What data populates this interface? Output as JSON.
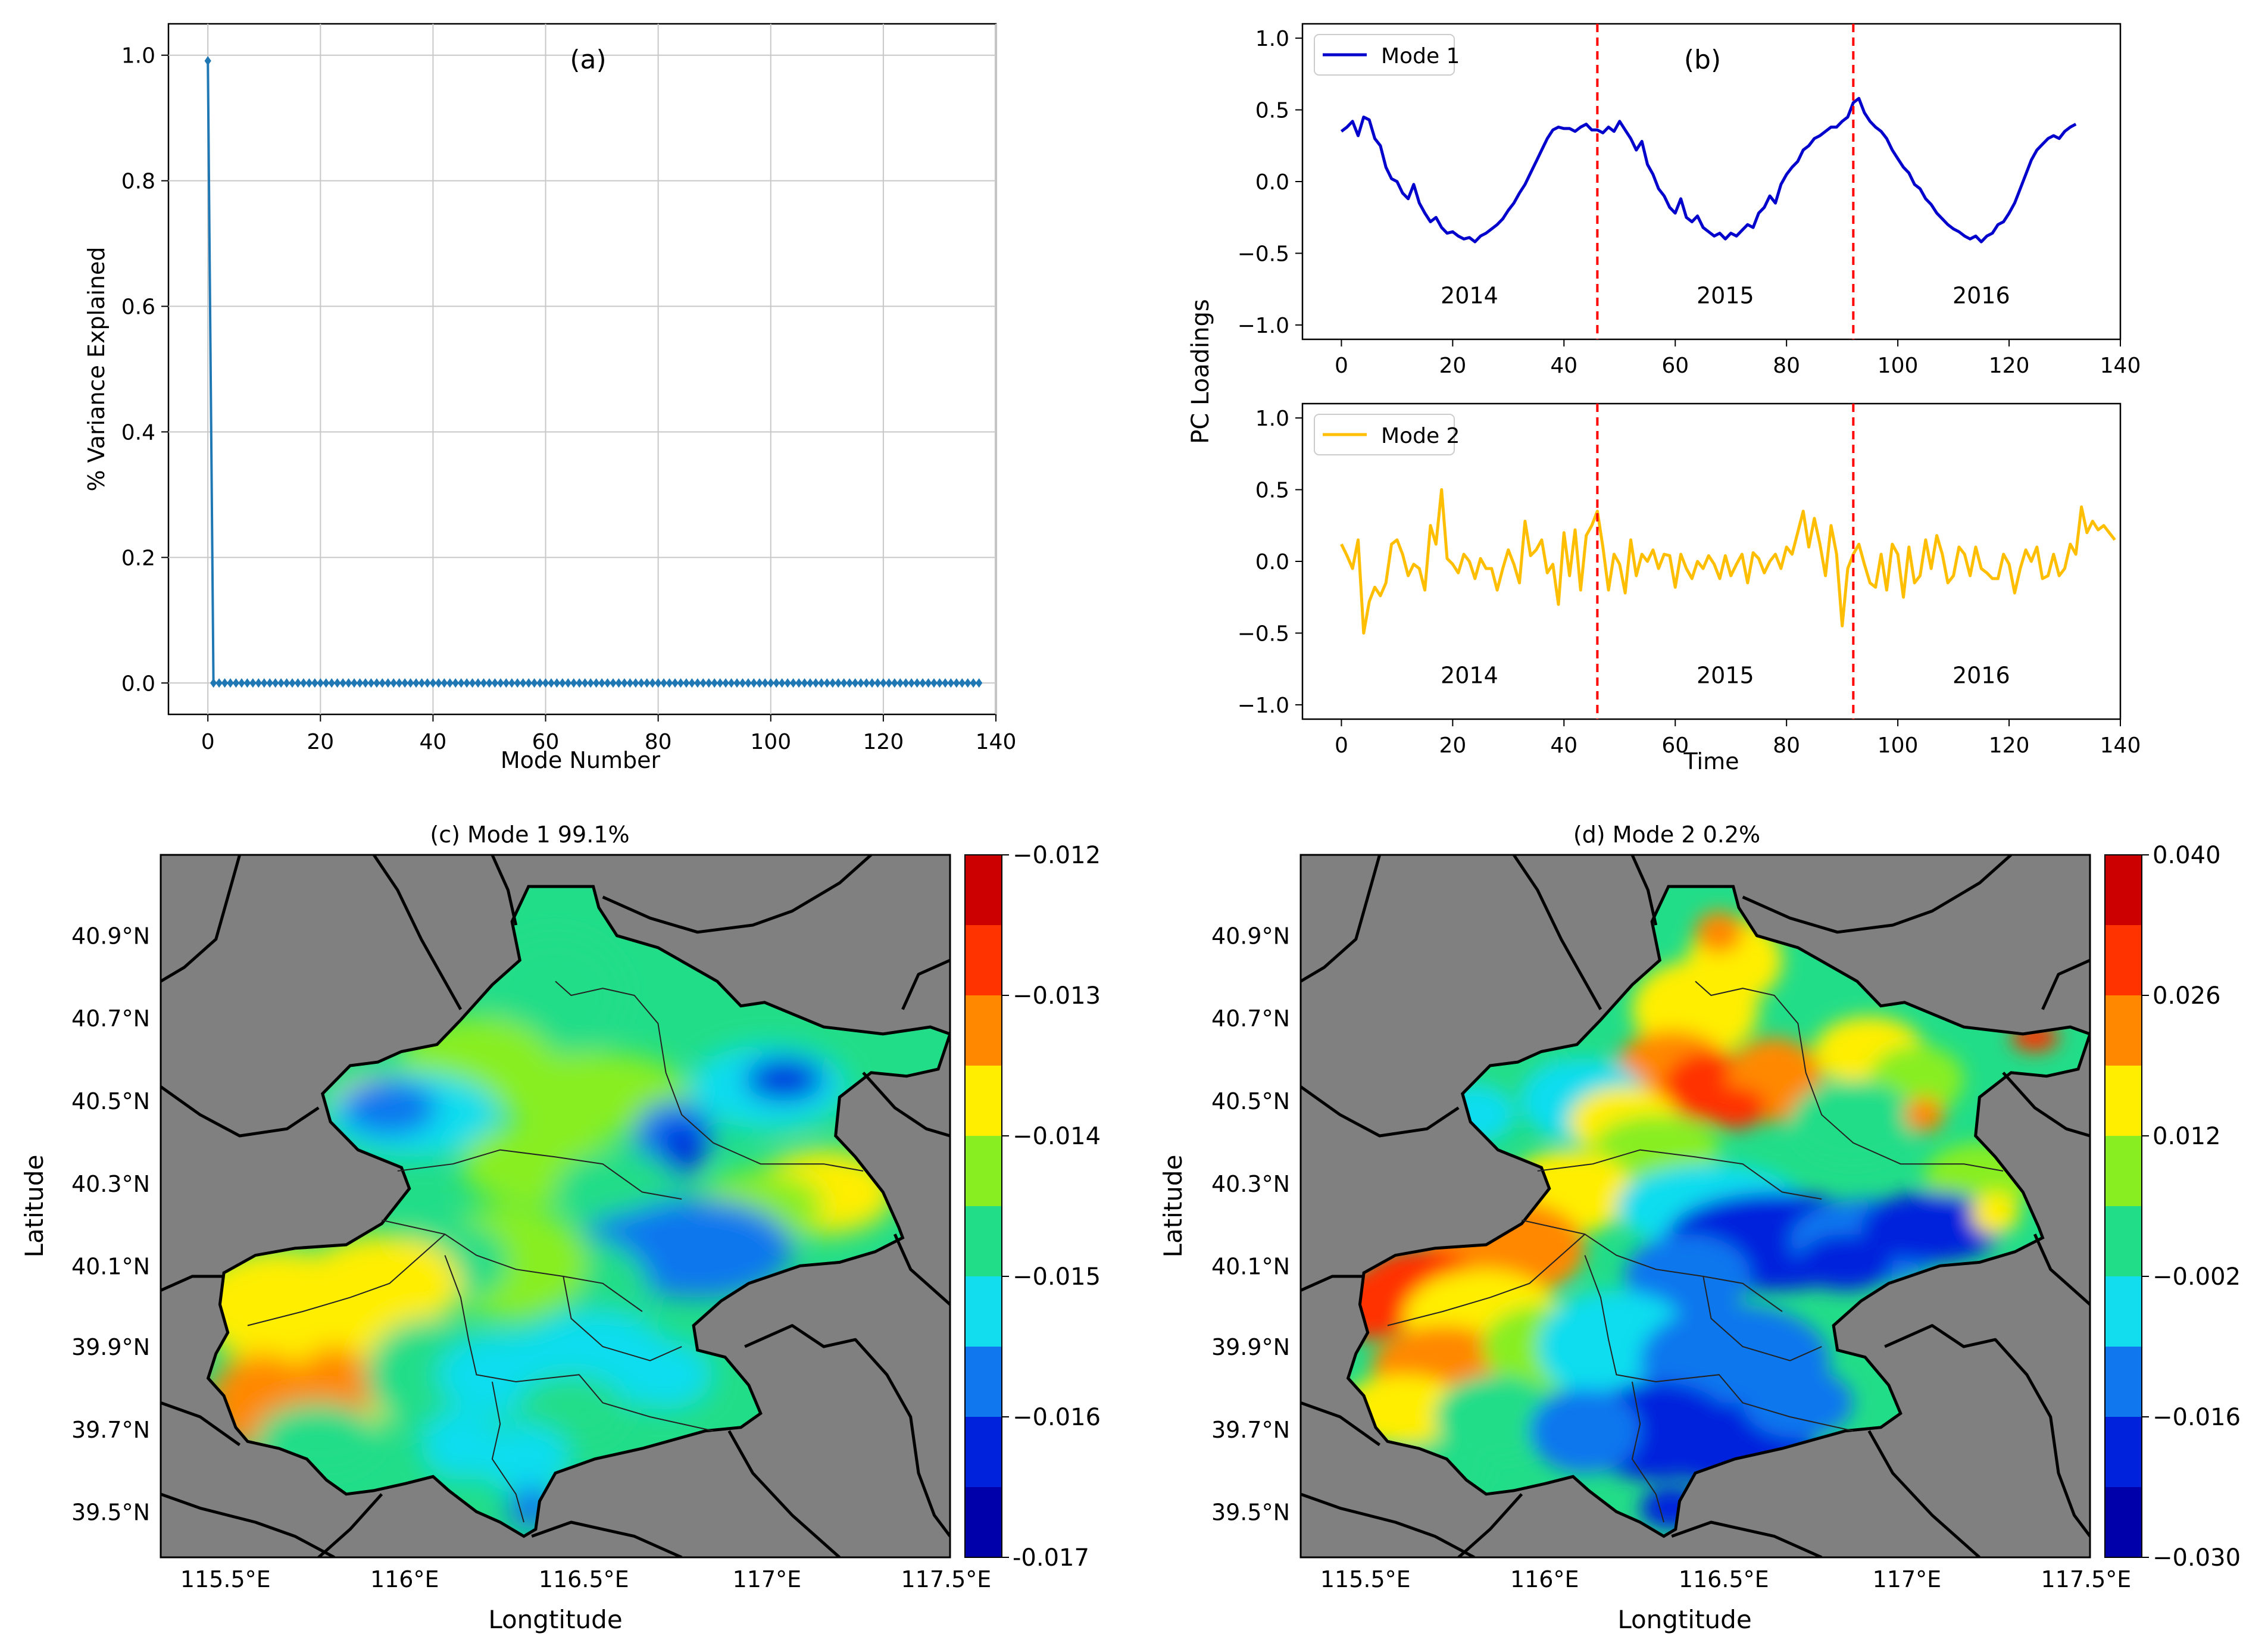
{
  "chart_data": [
    {
      "type": "line",
      "panel": "(a)",
      "xlabel": "Mode Number",
      "ylabel": "% Variance Explained",
      "xlim": [
        -7,
        140
      ],
      "ylim": [
        -0.05,
        1.05
      ],
      "xticks": [
        0,
        20,
        40,
        60,
        80,
        100,
        120,
        140
      ],
      "yticks": [
        0.0,
        0.2,
        0.4,
        0.6,
        0.8,
        1.0
      ],
      "grid": true,
      "marker": "diamond",
      "color": "#1f77b4",
      "series": [
        {
          "name": "Variance explained",
          "first_value": 0.991,
          "remaining_value": 0.0,
          "n_modes": 138
        }
      ]
    },
    {
      "type": "line",
      "panel": "(b)",
      "ylabel": "PC Loadings",
      "xlabel": "Time",
      "subplots": [
        {
          "name": "Mode 1",
          "color": "#0000cc",
          "xlim": [
            -7,
            140
          ],
          "ylim": [
            -1.1,
            1.1
          ],
          "xticks": [
            0,
            20,
            40,
            60,
            80,
            100,
            120,
            140
          ],
          "yticks": [
            -1.0,
            -0.5,
            0.0,
            0.5,
            1.0
          ],
          "values": [
            0.35,
            0.38,
            0.42,
            0.32,
            0.45,
            0.43,
            0.3,
            0.25,
            0.1,
            0.02,
            0.0,
            -0.08,
            -0.12,
            -0.02,
            -0.15,
            -0.22,
            -0.28,
            -0.25,
            -0.32,
            -0.36,
            -0.35,
            -0.38,
            -0.4,
            -0.39,
            -0.42,
            -0.38,
            -0.36,
            -0.33,
            -0.3,
            -0.26,
            -0.2,
            -0.15,
            -0.08,
            -0.02,
            0.06,
            0.14,
            0.22,
            0.3,
            0.36,
            0.38,
            0.37,
            0.37,
            0.35,
            0.38,
            0.4,
            0.36,
            0.36,
            0.34,
            0.38,
            0.35,
            0.42,
            0.36,
            0.3,
            0.22,
            0.28,
            0.12,
            0.05,
            -0.05,
            -0.1,
            -0.18,
            -0.22,
            -0.12,
            -0.25,
            -0.28,
            -0.24,
            -0.32,
            -0.35,
            -0.38,
            -0.36,
            -0.4,
            -0.36,
            -0.38,
            -0.34,
            -0.3,
            -0.32,
            -0.22,
            -0.18,
            -0.1,
            -0.15,
            -0.02,
            0.05,
            0.1,
            0.14,
            0.22,
            0.25,
            0.3,
            0.32,
            0.35,
            0.38,
            0.38,
            0.42,
            0.45,
            0.55,
            0.58,
            0.48,
            0.42,
            0.38,
            0.35,
            0.3,
            0.22,
            0.16,
            0.1,
            0.06,
            -0.02,
            -0.05,
            -0.12,
            -0.16,
            -0.22,
            -0.26,
            -0.3,
            -0.33,
            -0.35,
            -0.38,
            -0.4,
            -0.38,
            -0.42,
            -0.38,
            -0.36,
            -0.3,
            -0.28,
            -0.22,
            -0.15,
            -0.05,
            0.05,
            0.15,
            0.22,
            0.26,
            0.3,
            0.32,
            0.3,
            0.35,
            0.38,
            0.4
          ],
          "year_labels": [
            "2014",
            "2015",
            "2016"
          ],
          "year_boundaries": [
            46,
            92
          ]
        },
        {
          "name": "Mode 2",
          "color": "#ffbf00",
          "xlim": [
            -7,
            140
          ],
          "ylim": [
            -1.1,
            1.1
          ],
          "xticks": [
            0,
            20,
            40,
            60,
            80,
            100,
            120,
            140
          ],
          "yticks": [
            -1.0,
            -0.5,
            0.0,
            0.5,
            1.0
          ],
          "values": [
            0.12,
            0.04,
            -0.05,
            0.15,
            -0.5,
            -0.28,
            -0.18,
            -0.24,
            -0.15,
            0.12,
            0.15,
            0.05,
            -0.1,
            -0.02,
            -0.05,
            -0.2,
            0.25,
            0.12,
            0.5,
            0.02,
            -0.02,
            -0.08,
            0.05,
            0.0,
            -0.12,
            0.02,
            -0.05,
            -0.05,
            -0.2,
            -0.05,
            0.08,
            -0.02,
            -0.15,
            0.28,
            0.04,
            0.08,
            0.15,
            -0.08,
            -0.02,
            -0.3,
            0.2,
            -0.1,
            0.22,
            -0.2,
            0.18,
            0.25,
            0.35,
            0.1,
            -0.2,
            0.05,
            -0.02,
            -0.22,
            0.15,
            -0.1,
            0.05,
            0.0,
            0.08,
            -0.05,
            0.05,
            0.04,
            -0.18,
            0.05,
            -0.05,
            -0.12,
            0.0,
            -0.05,
            0.04,
            -0.02,
            -0.12,
            0.04,
            -0.1,
            -0.02,
            0.05,
            -0.15,
            0.06,
            0.02,
            -0.08,
            0.0,
            0.05,
            -0.05,
            0.1,
            0.05,
            0.2,
            0.35,
            0.1,
            0.3,
            0.12,
            -0.1,
            0.25,
            0.05,
            -0.45,
            -0.05,
            0.05,
            0.12,
            -0.02,
            -0.15,
            -0.18,
            0.05,
            -0.2,
            0.12,
            0.05,
            -0.25,
            0.1,
            -0.15,
            -0.1,
            0.15,
            -0.05,
            0.18,
            0.05,
            -0.15,
            -0.1,
            0.1,
            0.05,
            -0.1,
            0.1,
            -0.05,
            -0.08,
            -0.12,
            -0.12,
            0.05,
            -0.02,
            -0.22,
            -0.05,
            0.08,
            0.0,
            0.1,
            -0.12,
            -0.1,
            0.05,
            -0.1,
            -0.05,
            0.12,
            0.05,
            0.38,
            0.2,
            0.28,
            0.22,
            0.25,
            0.2,
            0.15
          ],
          "year_labels": [
            "2014",
            "2015",
            "2016"
          ],
          "year_boundaries": [
            46,
            92
          ]
        }
      ]
    },
    {
      "type": "heatmap",
      "panel": "(c)",
      "title": "(c)  Mode 1    99.1%",
      "xlabel": "Longtitude",
      "ylabel": "Latitude",
      "xticks": [
        "115.5°E",
        "116°E",
        "116.5°E",
        "117°E",
        "117.5°E"
      ],
      "yticks": [
        "40.9°N",
        "40.7°N",
        "40.5°N",
        "40.3°N",
        "40.1°N",
        "39.9°N",
        "39.7°N",
        "39.5°N"
      ],
      "colorbar_ticks": [
        "−0.012",
        "−0.013",
        "−0.014",
        "−0.015",
        "−0.016",
        "-0.017"
      ],
      "colorbar_colors": [
        "#cc0000",
        "#ff3300",
        "#ff8800",
        "#ffee00",
        "#88ee22",
        "#22dd88",
        "#11ddee",
        "#1177ee",
        "#0022dd",
        "#0000aa"
      ],
      "land_color": "#808080"
    },
    {
      "type": "heatmap",
      "panel": "(d)",
      "title": "(d)  Mode 2    0.2%",
      "xlabel": "Longtitude",
      "ylabel": "Latitude",
      "xticks": [
        "115.5°E",
        "116°E",
        "116.5°E",
        "117°E",
        "117.5°E"
      ],
      "yticks": [
        "40.9°N",
        "40.7°N",
        "40.5°N",
        "40.3°N",
        "40.1°N",
        "39.9°N",
        "39.7°N",
        "39.5°N"
      ],
      "colorbar_ticks": [
        "0.040",
        "0.026",
        "0.012",
        "−0.002",
        "−0.016",
        "−0.030"
      ],
      "colorbar_colors": [
        "#cc0000",
        "#ff3300",
        "#ff8800",
        "#ffee00",
        "#88ee22",
        "#22dd88",
        "#11ddee",
        "#1177ee",
        "#0022dd",
        "#0000aa"
      ],
      "land_color": "#808080"
    }
  ]
}
